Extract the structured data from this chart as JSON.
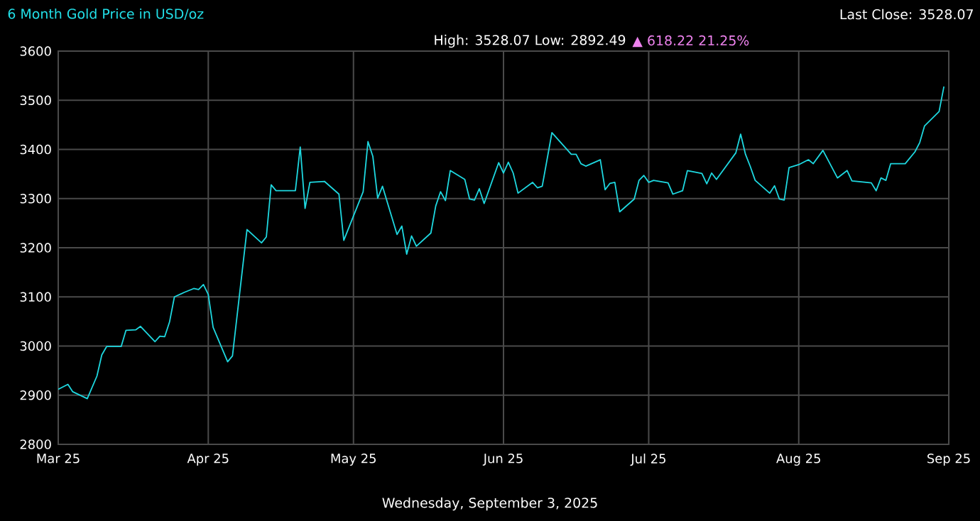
{
  "chart_data": {
    "type": "line",
    "title": "6 Month Gold Price in USD/oz",
    "subtitle": "High: 3528.07 Low: 2892.49",
    "annotations": [
      "Last Close: 3528.07",
      "▲ 618.22 21.25%",
      "Wednesday, September 3, 2025"
    ],
    "x": [
      "2025-03-01",
      "2025-03-03",
      "2025-03-04",
      "2025-03-07",
      "2025-03-09",
      "2025-03-10",
      "2025-03-11",
      "2025-03-14",
      "2025-03-15",
      "2025-03-17",
      "2025-03-18",
      "2025-03-21",
      "2025-03-22",
      "2025-03-23",
      "2025-03-24",
      "2025-03-25",
      "2025-03-27",
      "2025-03-29",
      "2025-03-30",
      "2025-03-31",
      "2025-04-01",
      "2025-04-02",
      "2025-04-05",
      "2025-04-06",
      "2025-04-09",
      "2025-04-12",
      "2025-04-13",
      "2025-04-14",
      "2025-04-15",
      "2025-04-19",
      "2025-04-20",
      "2025-04-21",
      "2025-04-22",
      "2025-04-25",
      "2025-04-28",
      "2025-04-29",
      "2025-05-03",
      "2025-05-04",
      "2025-05-05",
      "2025-05-06",
      "2025-05-07",
      "2025-05-10",
      "2025-05-11",
      "2025-05-12",
      "2025-05-13",
      "2025-05-14",
      "2025-05-17",
      "2025-05-18",
      "2025-05-19",
      "2025-05-20",
      "2025-05-21",
      "2025-05-24",
      "2025-05-25",
      "2025-05-26",
      "2025-05-27",
      "2025-05-28",
      "2025-05-31",
      "2025-06-01",
      "2025-06-02",
      "2025-06-03",
      "2025-06-04",
      "2025-06-07",
      "2025-06-08",
      "2025-06-09",
      "2025-06-11",
      "2025-06-15",
      "2025-06-16",
      "2025-06-17",
      "2025-06-18",
      "2025-06-21",
      "2025-06-22",
      "2025-06-23",
      "2025-06-24",
      "2025-06-25",
      "2025-06-28",
      "2025-06-29",
      "2025-06-30",
      "2025-07-01",
      "2025-07-02",
      "2025-07-05",
      "2025-07-06",
      "2025-07-08",
      "2025-07-09",
      "2025-07-12",
      "2025-07-13",
      "2025-07-14",
      "2025-07-15",
      "2025-07-19",
      "2025-07-20",
      "2025-07-21",
      "2025-07-22",
      "2025-07-23",
      "2025-07-26",
      "2025-07-27",
      "2025-07-28",
      "2025-07-29",
      "2025-07-30",
      "2025-08-01",
      "2025-08-03",
      "2025-08-04",
      "2025-08-06",
      "2025-08-09",
      "2025-08-11",
      "2025-08-12",
      "2025-08-16",
      "2025-08-17",
      "2025-08-18",
      "2025-08-19",
      "2025-08-20",
      "2025-08-23",
      "2025-08-25",
      "2025-08-26",
      "2025-08-27",
      "2025-08-30",
      "2025-08-31"
    ],
    "values": [
      2912,
      2922,
      2907,
      2893,
      2939,
      2982,
      2999,
      2999,
      3032,
      3033,
      3040,
      3009,
      3020,
      3019,
      3049,
      3100,
      3109,
      3117,
      3115,
      3125,
      3105,
      3038,
      2968,
      2980,
      3237,
      3210,
      3222,
      3328,
      3316,
      3316,
      3405,
      3280,
      3333,
      3335,
      3309,
      3215,
      3314,
      3416,
      3386,
      3301,
      3325,
      3227,
      3244,
      3187,
      3224,
      3203,
      3230,
      3285,
      3314,
      3296,
      3357,
      3339,
      3299,
      3297,
      3320,
      3290,
      3373,
      3352,
      3374,
      3352,
      3311,
      3333,
      3322,
      3325,
      3434,
      3390,
      3390,
      3371,
      3366,
      3379,
      3318,
      3331,
      3333,
      3273,
      3299,
      3337,
      3347,
      3333,
      3337,
      3332,
      3309,
      3316,
      3357,
      3351,
      3330,
      3352,
      3339,
      3393,
      3431,
      3390,
      3365,
      3337,
      3311,
      3326,
      3299,
      3297,
      3363,
      3369,
      3379,
      3371,
      3398,
      3342,
      3357,
      3336,
      3332,
      3316,
      3342,
      3337,
      3371,
      3371,
      3395,
      3414,
      3448,
      3477,
      3528
    ],
    "color": "#1ed8e0",
    "xlim": [
      "2025-03-01",
      "2025-09-01"
    ],
    "xticks": [
      {
        "value": "2025-03-01",
        "label": "Mar 25"
      },
      {
        "value": "2025-04-01",
        "label": "Apr 25"
      },
      {
        "value": "2025-05-01",
        "label": "May 25"
      },
      {
        "value": "2025-06-01",
        "label": "Jun 25"
      },
      {
        "value": "2025-07-01",
        "label": "Jul 25"
      },
      {
        "value": "2025-08-01",
        "label": "Aug 25"
      },
      {
        "value": "2025-09-01",
        "label": "Sep 25"
      }
    ],
    "ylim": [
      2800,
      3600
    ],
    "yticks": [
      2800,
      2900,
      3000,
      3100,
      3200,
      3300,
      3400,
      3500,
      3600
    ],
    "grid": true
  }
}
